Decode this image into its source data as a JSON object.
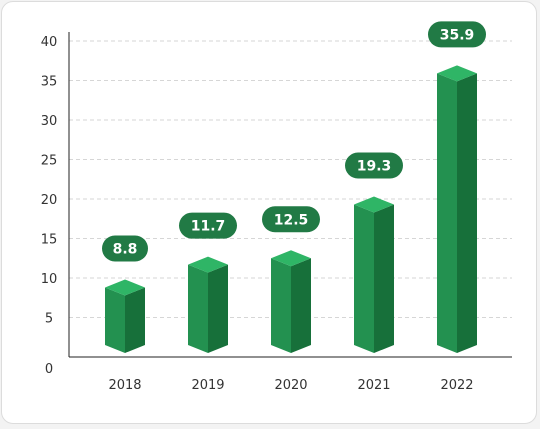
{
  "chart_data": {
    "type": "bar",
    "categories": [
      "2018",
      "2019",
      "2020",
      "2021",
      "2022"
    ],
    "values": [
      8.8,
      11.7,
      12.5,
      19.3,
      35.9
    ],
    "data_labels": [
      "8.8",
      "11.7",
      "12.5",
      "19.3",
      "35.9"
    ],
    "title": "",
    "xlabel": "",
    "ylabel": "",
    "ylim": [
      0,
      40
    ],
    "yticks": [
      0,
      5,
      10,
      15,
      20,
      25,
      30,
      35,
      40
    ],
    "grid": "horizontal dashed",
    "style": "3d-column",
    "colors": {
      "front": "#239150",
      "side": "#17703a",
      "top": "#2fb566",
      "badge": "#217a45",
      "grid": "#d6d6d6",
      "axis": "#222222"
    }
  }
}
